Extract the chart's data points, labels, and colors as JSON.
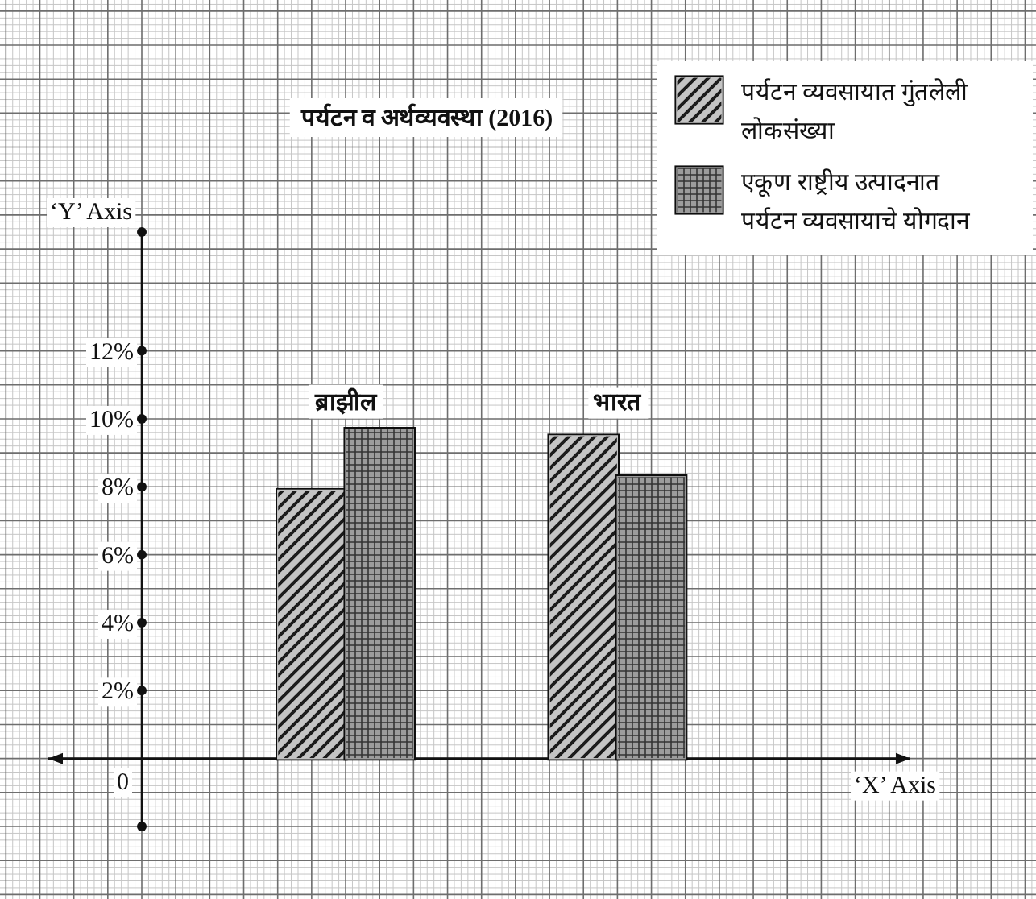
{
  "chart_data": {
    "type": "bar",
    "title": "पर्यटन व अर्थव्यवस्था (2016)",
    "xlabel": "‘X’ Axis",
    "ylabel": "‘Y’ Axis",
    "categories": [
      "ब्राझील",
      "भारत"
    ],
    "series": [
      {
        "name": "पर्यटन व्यवसायात गुंतलेली लोकसंख्या",
        "color": "#c4c4c4",
        "values": [
          7.9,
          9.5
        ]
      },
      {
        "name": "एकूण राष्ट्रीय उत्पादनात पर्यटन व्यवसायाचे योगदान",
        "color": "#9c9c9c",
        "values": [
          9.7,
          8.3
        ]
      }
    ],
    "ylim": [
      -2,
      15.5
    ],
    "yticks": [
      {
        "value": -2,
        "label": null
      },
      {
        "value": 2,
        "label": "2%"
      },
      {
        "value": 4,
        "label": "4%"
      },
      {
        "value": 6,
        "label": "6%"
      },
      {
        "value": 8,
        "label": "8%"
      },
      {
        "value": 10,
        "label": "10%"
      },
      {
        "value": 12,
        "label": "12%"
      }
    ],
    "annotations": [
      "0"
    ],
    "grid": true,
    "legend": "top right"
  }
}
